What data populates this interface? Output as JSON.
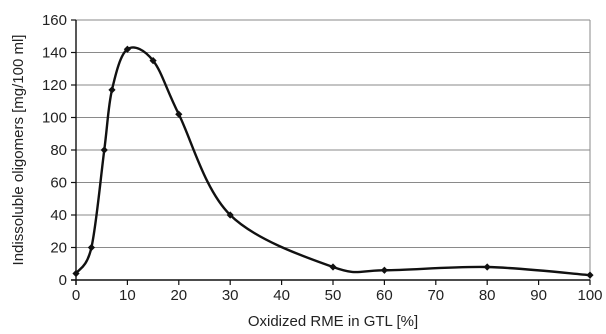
{
  "chart_data": {
    "type": "line",
    "title": "",
    "xlabel": "Oxidized RME in GTL [%]",
    "ylabel": "Indissoluble oligomers [mg/100 ml]",
    "xlim": [
      0,
      100
    ],
    "ylim": [
      0,
      160
    ],
    "x_ticks": [
      0,
      10,
      20,
      30,
      40,
      50,
      60,
      70,
      80,
      90,
      100
    ],
    "y_ticks": [
      0,
      20,
      40,
      60,
      80,
      100,
      120,
      140,
      160
    ],
    "x_tick_labels": [
      "0",
      "10",
      "20",
      "30",
      "40",
      "50",
      "60",
      "70",
      "80",
      "90",
      "100"
    ],
    "y_tick_labels": [
      "0",
      "20",
      "40",
      "60",
      "80",
      "100",
      "120",
      "140",
      "160"
    ],
    "grid": "horizontal",
    "series": [
      {
        "color": "#111111",
        "smooth": true,
        "points": [
          {
            "x": 0,
            "y": 4
          },
          {
            "x": 3,
            "y": 20
          },
          {
            "x": 5.5,
            "y": 80
          },
          {
            "x": 7,
            "y": 117
          },
          {
            "x": 10,
            "y": 142
          },
          {
            "x": 15,
            "y": 135
          },
          {
            "x": 20,
            "y": 102
          },
          {
            "x": 30,
            "y": 40
          },
          {
            "x": 50,
            "y": 8
          },
          {
            "x": 60,
            "y": 6
          },
          {
            "x": 80,
            "y": 8
          },
          {
            "x": 100,
            "y": 3
          }
        ]
      }
    ]
  }
}
